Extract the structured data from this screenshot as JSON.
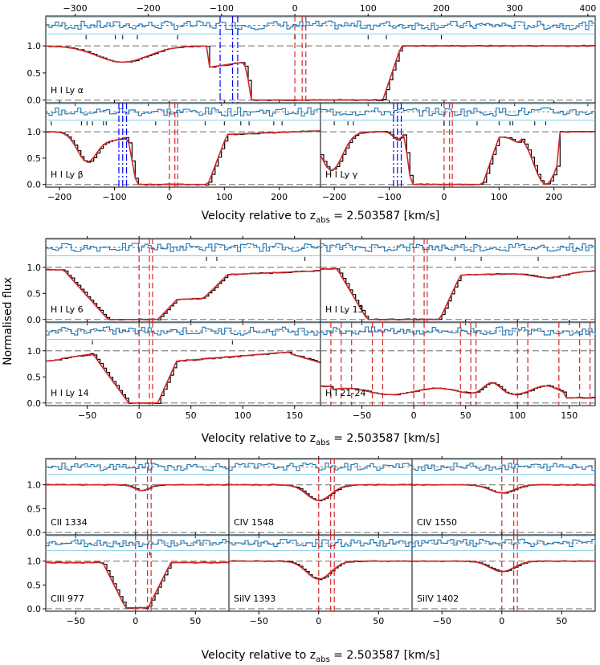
{
  "figure": {
    "ylabel": "Normalised flux",
    "xlabel_prefix": "Velocity relative to z",
    "xlabel_sub": "abs",
    "xlabel_suffix": " = 2.503587 [km/s]",
    "colors": {
      "data": "#000000",
      "model": "#d62728",
      "residual": "#1f77b4",
      "residual_band": "#87ceeb",
      "blue_comp": "#0000ff"
    }
  },
  "chart_data": [
    {
      "type": "line",
      "group": "HI Ly alpha/beta/gamma",
      "xlim_top": [
        -340,
        410
      ],
      "xticks_top": [
        -300,
        -200,
        -100,
        0,
        100,
        200,
        300,
        400
      ],
      "xlim_bottom": [
        -225,
        275
      ],
      "xticks_bottom": [
        -200,
        -100,
        0,
        100,
        200
      ],
      "ylim": [
        -0.05,
        1.55
      ],
      "yticks": [
        0.0,
        0.5,
        1.0
      ],
      "panels": [
        {
          "label": "H I Ly α",
          "red_lines": [
            0,
            10,
            15
          ],
          "blue_lines": [
            -102,
            -85,
            -78
          ]
        },
        {
          "label": "H I Ly β",
          "red_lines": [
            0,
            10,
            15
          ],
          "blue_lines": [
            -92,
            -85,
            -78
          ]
        },
        {
          "label": "H I Ly γ",
          "red_lines": [
            0,
            10,
            15
          ],
          "blue_lines": [
            -92,
            -85,
            -78
          ]
        }
      ]
    },
    {
      "type": "line",
      "group": "HI Lyman series high orders",
      "xlim": [
        -90,
        175
      ],
      "xticks": [
        -50,
        0,
        50,
        100,
        150
      ],
      "ylim": [
        -0.05,
        1.55
      ],
      "yticks": [
        0.0,
        0.5,
        1.0
      ],
      "panels": [
        {
          "label": "H I Ly 6",
          "red_lines": [
            0,
            10,
            13
          ]
        },
        {
          "label": "H I Ly 13",
          "red_lines": [
            0,
            10,
            13
          ]
        },
        {
          "label": "H I Ly 14",
          "red_lines": [
            0,
            10,
            13
          ]
        },
        {
          "label": "H I 21-24",
          "red_lines": [
            -80,
            -70,
            -60,
            -40,
            -30,
            0,
            10,
            45,
            55,
            60,
            100,
            110,
            140,
            160,
            170
          ]
        }
      ]
    },
    {
      "type": "line",
      "group": "Metal lines",
      "xlim": [
        -75,
        78
      ],
      "xticks": [
        -50,
        0,
        50
      ],
      "ylim": [
        -0.05,
        1.55
      ],
      "yticks": [
        0.0,
        0.5,
        1.0
      ],
      "panels": [
        {
          "label": "CII 1334",
          "red_lines": [
            0,
            10,
            13
          ]
        },
        {
          "label": "CIV 1548",
          "red_lines": [
            0,
            10,
            13
          ]
        },
        {
          "label": "CIV 1550",
          "red_lines": [
            0,
            10,
            13
          ]
        },
        {
          "label": "CIII 977",
          "red_lines": [
            0,
            10,
            13
          ]
        },
        {
          "label": "SiIV 1393",
          "red_lines": [
            0,
            10,
            13
          ]
        },
        {
          "label": "SiIV 1402",
          "red_lines": [
            0,
            10,
            13
          ]
        }
      ]
    }
  ]
}
